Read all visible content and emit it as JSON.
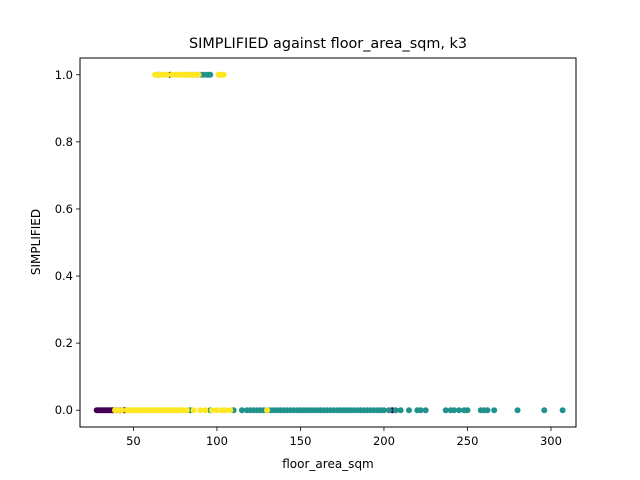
{
  "chart_data": {
    "type": "scatter",
    "title": "SIMPLIFIED against floor_area_sqm, k3",
    "xlabel": "floor_area_sqm",
    "ylabel": "SIMPLIFIED",
    "xlim": [
      18,
      315
    ],
    "ylim": [
      -0.05,
      1.05
    ],
    "xticks": [
      50,
      100,
      150,
      200,
      250,
      300
    ],
    "yticks": [
      0.0,
      0.2,
      0.4,
      0.6,
      0.8,
      1.0
    ],
    "xtick_labels": [
      "50",
      "100",
      "150",
      "200",
      "250",
      "300"
    ],
    "ytick_labels": [
      "0.0",
      "0.2",
      "0.4",
      "0.6",
      "0.8",
      "1.0"
    ],
    "grid": false,
    "legend": null,
    "colors": {
      "cluster_0": "#440154",
      "cluster_1": "#21918c",
      "cluster_2": "#fde725"
    },
    "series": [
      {
        "name": "cluster_0",
        "color": "#440154",
        "x": [
          28,
          29,
          30,
          31,
          32,
          33,
          34,
          35,
          36,
          37,
          38,
          40,
          42,
          44,
          45,
          65,
          72,
          205
        ],
        "y": [
          0,
          0,
          0,
          0,
          0,
          0,
          0,
          0,
          0,
          0,
          0,
          0,
          0,
          0,
          0,
          1,
          1,
          0
        ]
      },
      {
        "name": "cluster_1",
        "color": "#21918c",
        "x": [
          85,
          88,
          90,
          92,
          94,
          95,
          96,
          84,
          96,
          110,
          115,
          118,
          120,
          122,
          124,
          126,
          128,
          130,
          132,
          134,
          136,
          138,
          140,
          142,
          144,
          146,
          148,
          150,
          152,
          154,
          156,
          158,
          160,
          162,
          164,
          166,
          168,
          170,
          172,
          174,
          176,
          178,
          180,
          182,
          184,
          186,
          188,
          190,
          192,
          194,
          196,
          198,
          200,
          203,
          207,
          210,
          215,
          220,
          222,
          225,
          237,
          240,
          242,
          245,
          248,
          250,
          258,
          260,
          262,
          266,
          280,
          296,
          307
        ],
        "y": [
          1,
          1,
          1,
          1,
          1,
          1,
          1,
          0,
          0,
          0,
          0,
          0,
          0,
          0,
          0,
          0,
          0,
          0,
          0,
          0,
          0,
          0,
          0,
          0,
          0,
          0,
          0,
          0,
          0,
          0,
          0,
          0,
          0,
          0,
          0,
          0,
          0,
          0,
          0,
          0,
          0,
          0,
          0,
          0,
          0,
          0,
          0,
          0,
          0,
          0,
          0,
          0,
          0,
          0,
          0,
          0,
          0,
          0,
          0,
          0,
          0,
          0,
          0,
          0,
          0,
          0,
          0,
          0,
          0,
          0,
          0,
          0,
          0
        ]
      },
      {
        "name": "cluster_2",
        "color": "#fde725",
        "x": [
          63,
          64,
          65,
          66,
          67,
          68,
          69,
          70,
          73,
          75,
          76,
          77,
          78,
          79,
          80,
          81,
          82,
          83,
          84,
          85,
          86,
          87,
          89,
          101,
          102,
          103,
          104,
          39,
          41,
          43,
          46,
          47,
          48,
          49,
          50,
          51,
          52,
          53,
          54,
          55,
          56,
          57,
          58,
          59,
          60,
          61,
          62,
          63,
          64,
          65,
          66,
          67,
          68,
          69,
          70,
          71,
          72,
          73,
          74,
          75,
          76,
          77,
          78,
          79,
          80,
          82,
          86,
          90,
          93,
          97,
          100,
          103,
          105,
          108,
          130
        ],
        "y": [
          1,
          1,
          1,
          1,
          1,
          1,
          1,
          1,
          1,
          1,
          1,
          1,
          1,
          1,
          1,
          1,
          1,
          1,
          1,
          1,
          1,
          1,
          1,
          1,
          1,
          1,
          1,
          0,
          0,
          0,
          0,
          0,
          0,
          0,
          0,
          0,
          0,
          0,
          0,
          0,
          0,
          0,
          0,
          0,
          0,
          0,
          0,
          0,
          0,
          0,
          0,
          0,
          0,
          0,
          0,
          0,
          0,
          0,
          0,
          0,
          0,
          0,
          0,
          0,
          0,
          0,
          0,
          0,
          0,
          0,
          0,
          0,
          0,
          0,
          0
        ]
      }
    ]
  }
}
